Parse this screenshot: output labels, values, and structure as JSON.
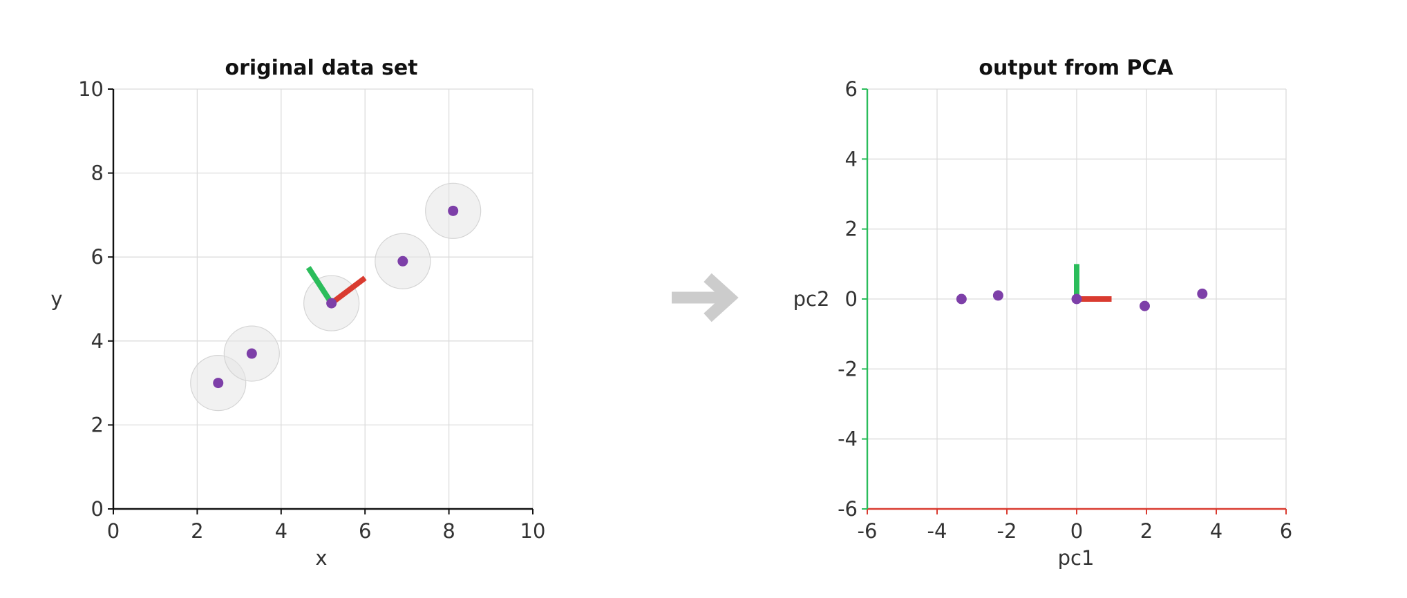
{
  "chart_data": [
    {
      "type": "scatter",
      "title": "original data set",
      "xlabel": "x",
      "ylabel": "y",
      "xlim": [
        0,
        10
      ],
      "ylim": [
        0,
        10
      ],
      "xticks": [
        "0",
        "2",
        "4",
        "6",
        "8",
        "10"
      ],
      "yticks": [
        "0",
        "2",
        "4",
        "6",
        "8",
        "10"
      ],
      "grid": true,
      "points": [
        {
          "x": 2.5,
          "y": 3.0
        },
        {
          "x": 3.3,
          "y": 3.7
        },
        {
          "x": 5.2,
          "y": 4.9
        },
        {
          "x": 6.9,
          "y": 5.9
        },
        {
          "x": 8.1,
          "y": 7.1
        }
      ],
      "components": [
        {
          "name": "pc1",
          "x1": 5.2,
          "y1": 4.9,
          "x2": 6.0,
          "y2": 5.5,
          "color": "#d93b30"
        },
        {
          "name": "pc2",
          "x1": 5.2,
          "y1": 4.9,
          "x2": 4.65,
          "y2": 5.75,
          "color": "#2bbd5b"
        }
      ]
    },
    {
      "type": "scatter",
      "title": "output from PCA",
      "xlabel": "pc1",
      "ylabel": "pc2",
      "xlim": [
        -6,
        6
      ],
      "ylim": [
        -6,
        6
      ],
      "xticks": [
        "-6",
        "-4",
        "-2",
        "0",
        "2",
        "4",
        "6"
      ],
      "yticks": [
        "-6",
        "-4",
        "-2",
        "0",
        "2",
        "4",
        "6"
      ],
      "grid": true,
      "points": [
        {
          "x": -3.3,
          "y": 0.0
        },
        {
          "x": -2.25,
          "y": 0.1
        },
        {
          "x": 0.0,
          "y": 0.0
        },
        {
          "x": 1.95,
          "y": -0.2
        },
        {
          "x": 3.6,
          "y": 0.15
        }
      ],
      "components": [
        {
          "name": "pc1",
          "x1": 0,
          "y1": 0,
          "x2": 1.0,
          "y2": 0,
          "color": "#d93b30"
        },
        {
          "name": "pc2",
          "x1": 0,
          "y1": 0,
          "x2": 0,
          "y2": 1.0,
          "color": "#2bbd5b"
        }
      ]
    }
  ],
  "colors": {
    "point": "#7d3fa8",
    "halo": "#e6e6e6",
    "pc1": "#d93b30",
    "pc2": "#2bbd5b",
    "arrow": "#cccccc",
    "axis": "#111111"
  },
  "transition_icon": "right-arrow-icon"
}
